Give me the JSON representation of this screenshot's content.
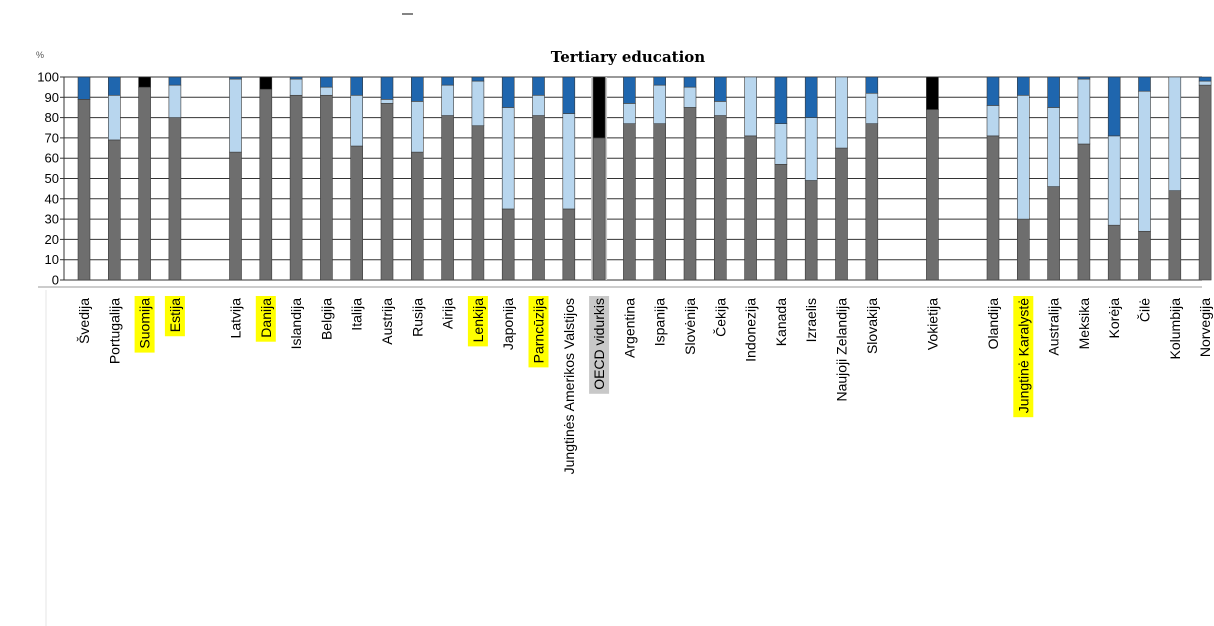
{
  "chart_data": {
    "type": "bar",
    "stacked": true,
    "title": "Tertiary education",
    "ylabel": "%",
    "ylim": [
      0,
      100
    ],
    "yticks": [
      0,
      10,
      20,
      30,
      40,
      50,
      60,
      70,
      80,
      90,
      100
    ],
    "grid": true,
    "legend": "none",
    "colors": {
      "series": [
        "#6e6e6e",
        "#b8d6ee",
        "#1f66ae",
        "#000000"
      ],
      "highlight": "#ffff00",
      "oecd_highlight": "#c8c8c8"
    },
    "categories": [
      "Švedija",
      "Portugalija",
      "Suomija",
      "Estija",
      "",
      "Latvija",
      "Danija",
      "Islandija",
      "Belgija",
      "Italija",
      "Austrija",
      "Rusija",
      "Airija",
      "Lenkija",
      "Japonija",
      "Parncūzija",
      "Jungtinės Amerikos Valstijos",
      "OECD vidurkis",
      "Argentina",
      "Ispanija",
      "Slovėnija",
      "Čekija",
      "Indonezija",
      "Kanada",
      "Izraelis",
      "Naujoji Zelandija",
      "Slovakija",
      "",
      "Vokietija",
      "",
      "Olandija",
      "Jungtinė Karalystė",
      "Australija",
      "Meksika",
      "Korėja",
      "Čilė",
      "Kolumbija",
      "Norvegija"
    ],
    "highlighted": [
      "Suomija",
      "Estija",
      "Danija",
      "Lenkija",
      "Parncūzija",
      "Jungtinė Karalystė"
    ],
    "highlighted_gray": [
      "OECD vidurkis"
    ],
    "series": [
      {
        "values": [
          89,
          69,
          95,
          80,
          null,
          63,
          94,
          91,
          91,
          66,
          87,
          63,
          81,
          76,
          35,
          81,
          35,
          70,
          77,
          77,
          85,
          81,
          71,
          57,
          49,
          65,
          77,
          null,
          84,
          null,
          71,
          30,
          46,
          67,
          27,
          24,
          44,
          96
        ]
      },
      {
        "values": [
          0,
          22,
          0,
          16,
          null,
          36,
          0,
          8,
          4,
          25,
          2,
          25,
          15,
          22,
          50,
          10,
          47,
          0,
          10,
          19,
          10,
          7,
          29,
          20,
          31,
          35,
          15,
          null,
          0,
          null,
          15,
          61,
          39,
          32,
          44,
          69,
          56,
          2
        ]
      },
      {
        "values": [
          11,
          9,
          0,
          4,
          null,
          1,
          0,
          1,
          5,
          9,
          11,
          12,
          4,
          2,
          15,
          9,
          18,
          0,
          13,
          4,
          5,
          12,
          0,
          23,
          20,
          0,
          8,
          null,
          0,
          null,
          14,
          9,
          15,
          1,
          29,
          7,
          0,
          2
        ]
      },
      {
        "values": [
          0,
          0,
          5,
          0,
          null,
          0,
          6,
          0,
          0,
          0,
          0,
          0,
          0,
          0,
          0,
          0,
          0,
          30,
          0,
          0,
          0,
          0,
          0,
          0,
          0,
          0,
          0,
          null,
          16,
          null,
          0,
          0,
          0,
          0,
          0,
          0,
          0,
          0
        ]
      }
    ]
  }
}
